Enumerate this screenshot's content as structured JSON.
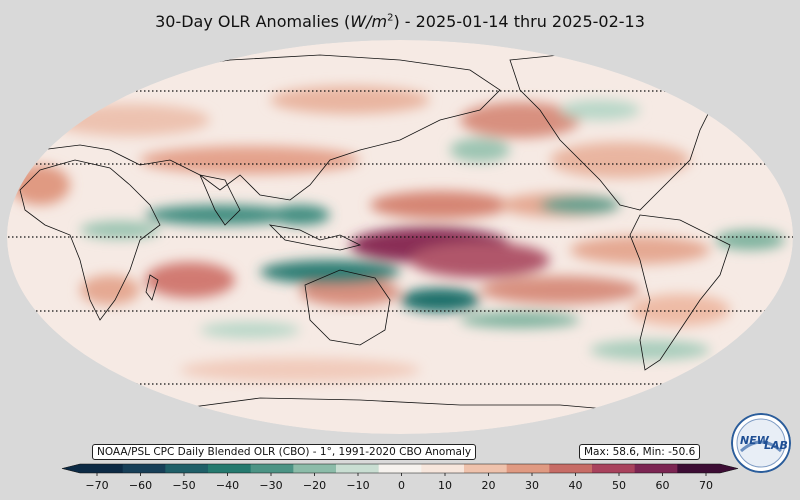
{
  "title": {
    "prefix": "30-Day OLR Anomalies (",
    "unit_base": "W/m",
    "unit_exp": "2",
    "suffix": ") - 2025-01-14 thru 2025-02-13"
  },
  "source_note": "NOAA/PSL CPC Daily Blended OLR (CBO) - 1°, 1991-2020 CBO Anomaly",
  "stats": "Max: 58.6,  Min: -50.6",
  "logo": {
    "text_left": "NEW",
    "text_right": "LAB"
  },
  "colorbar": {
    "ticks": [
      "−70",
      "−60",
      "−50",
      "−40",
      "−30",
      "−20",
      "−10",
      "0",
      "10",
      "20",
      "30",
      "40",
      "50",
      "60",
      "70"
    ],
    "min": -70,
    "max": 70,
    "colors": [
      "#0c2a45",
      "#173f58",
      "#1f5f68",
      "#257a6f",
      "#4c9485",
      "#8cbca9",
      "#c9ded2",
      "#f6f2ee",
      "#f7e6dc",
      "#efc2ac",
      "#e09a82",
      "#c76c66",
      "#a9425d",
      "#7c2553",
      "#3d0d35"
    ]
  }
}
